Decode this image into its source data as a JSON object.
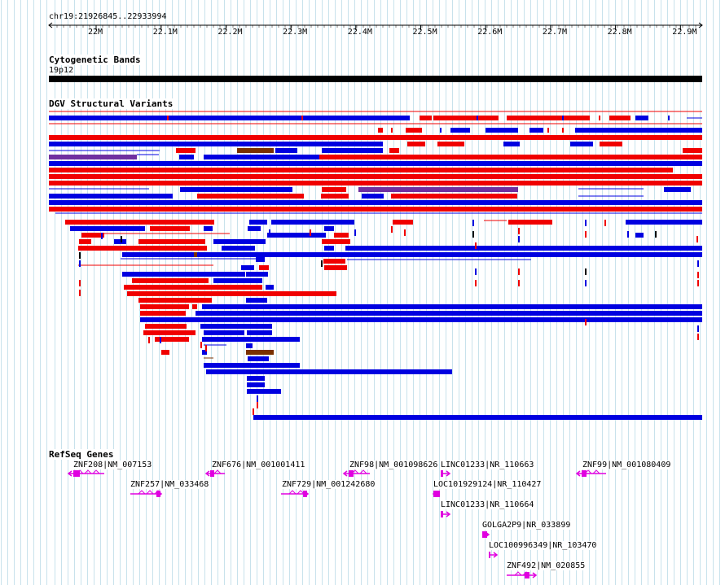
{
  "location": "chr19:21926845..22933994",
  "ruler": {
    "ticks": [
      "22M",
      "22.1M",
      "22.2M",
      "22.3M",
      "22.4M",
      "22.5M",
      "22.6M",
      "22.7M",
      "22.8M",
      "22.9M"
    ]
  },
  "tracks": {
    "cytoband": {
      "title": "Cytogenetic Bands",
      "band": "19p12"
    },
    "dgv": {
      "title": "DGV Structural Variants"
    },
    "refseq": {
      "title": "RefSeq Genes",
      "genes": [
        {
          "label": "ZNF208|NM_007153"
        },
        {
          "label": "ZNF257|NM_033468"
        },
        {
          "label": "ZNF676|NM_001001411"
        },
        {
          "label": "ZNF729|NM_001242680"
        },
        {
          "label": "ZNF98|NM_001098626"
        },
        {
          "label": "LINC01233|NR_110663"
        },
        {
          "label": "LOC101929124|NR_110427"
        },
        {
          "label": "LINC01233|NR_110664"
        },
        {
          "label": "GOLGA2P9|NR_033899"
        },
        {
          "label": "LOC100996349|NR_103470"
        },
        {
          "label": "ZNF492|NM_020855"
        },
        {
          "label": "ZNF99|NM_001080409"
        }
      ]
    }
  },
  "colors": {
    "loss": "#f00000",
    "gain": "#0000e0",
    "gain_loss": "#7a3000",
    "inversion": "#7030a0",
    "gene": "#e000e0",
    "grid": "#c8e2ec"
  }
}
